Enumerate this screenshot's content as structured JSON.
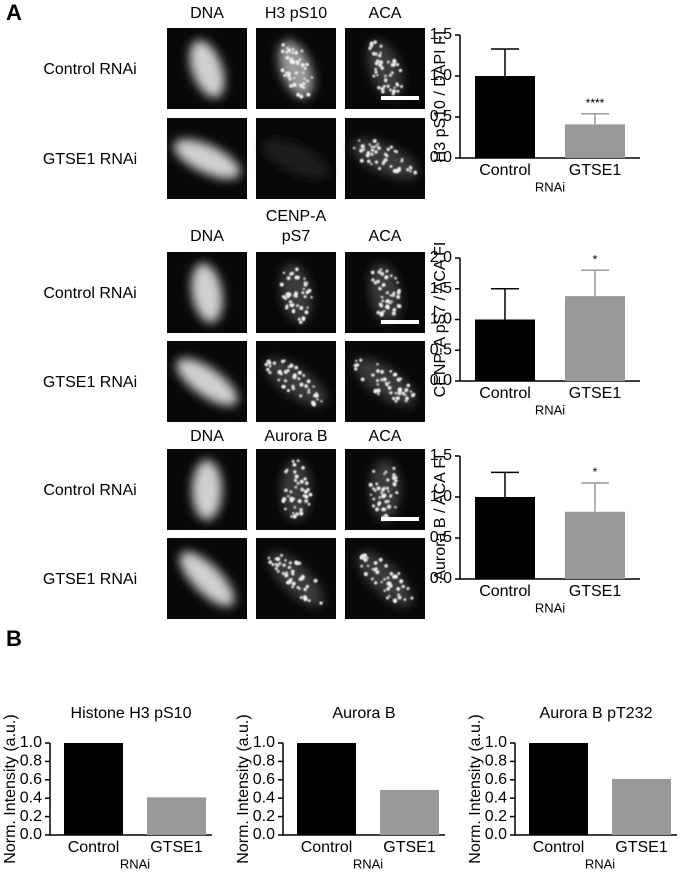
{
  "figure": {
    "panel_labels": [
      "A",
      "B"
    ],
    "image_sets": [
      {
        "columns": [
          "DNA",
          "H3 pS10",
          "ACA"
        ],
        "rows": [
          "Control RNAi",
          "GTSE1 RNAi"
        ]
      },
      {
        "columns": [
          "DNA",
          [
            "CENP-A",
            "pS7"
          ],
          "ACA"
        ],
        "rows": [
          "Control RNAi",
          "GTSE1 RNAi"
        ]
      },
      {
        "columns": [
          "DNA",
          "Aurora B",
          "ACA"
        ],
        "rows": [
          "Control RNAi",
          "GTSE1 RNAi"
        ]
      }
    ]
  },
  "chart_data": [
    {
      "type": "bar",
      "ylabel": "H3 pS10 / DAPI FI",
      "xlabel": "RNAi",
      "categories": [
        "Control",
        "GTSE1"
      ],
      "values": [
        1.0,
        0.41
      ],
      "errors": [
        0.33,
        0.13
      ],
      "significance": [
        null,
        "****"
      ],
      "colors": [
        "#000000",
        "#999999"
      ],
      "ylim": [
        0,
        1.5
      ],
      "yticks": [
        {
          "value": 0,
          "label": "0.0"
        },
        {
          "value": 0.5,
          "label": "0.5"
        },
        {
          "value": 1,
          "label": "1.0"
        },
        {
          "value": 1.5,
          "label": "1.5"
        }
      ]
    },
    {
      "type": "bar",
      "ylabel": "CENP-A pS7 / ACA FI",
      "xlabel": "RNAi",
      "categories": [
        "Control",
        "GTSE1"
      ],
      "values": [
        1.0,
        1.38
      ],
      "errors": [
        0.5,
        0.42
      ],
      "significance": [
        null,
        "*"
      ],
      "colors": [
        "#000000",
        "#999999"
      ],
      "ylim": [
        0,
        2
      ],
      "yticks": [
        {
          "value": 0,
          "label": "0.0"
        },
        {
          "value": 0.5,
          "label": "0.5"
        },
        {
          "value": 1,
          "label": "1.0"
        },
        {
          "value": 1.5,
          "label": "1.5"
        },
        {
          "value": 2,
          "label": "2.0"
        }
      ]
    },
    {
      "type": "bar",
      "ylabel": "Aurora B / ACA FI",
      "xlabel": "RNAi",
      "categories": [
        "Control",
        "GTSE1"
      ],
      "values": [
        1.0,
        0.82
      ],
      "errors": [
        0.3,
        0.35
      ],
      "significance": [
        null,
        "*"
      ],
      "colors": [
        "#000000",
        "#999999"
      ],
      "ylim": [
        0,
        1.5
      ],
      "yticks": [
        {
          "value": 0,
          "label": "0.0"
        },
        {
          "value": 0.5,
          "label": "0.5"
        },
        {
          "value": 1,
          "label": "1.0"
        },
        {
          "value": 1.5,
          "label": "1.5"
        }
      ]
    },
    {
      "type": "bar",
      "title": "Histone H3 pS10",
      "ylabel": "Norm. Intensity (a.u.)",
      "xlabel": "RNAi",
      "categories": [
        "Control",
        "GTSE1"
      ],
      "values": [
        1.0,
        0.41
      ],
      "colors": [
        "#000000",
        "#999999"
      ],
      "ylim": [
        0,
        1
      ],
      "yticks": [
        {
          "value": 0,
          "label": "0.0"
        },
        {
          "value": 0.2,
          "label": "0.2"
        },
        {
          "value": 0.4,
          "label": "0.4"
        },
        {
          "value": 0.6,
          "label": "0.6"
        },
        {
          "value": 0.8,
          "label": "0.8"
        },
        {
          "value": 1,
          "label": "1.0"
        }
      ]
    },
    {
      "type": "bar",
      "title": "Aurora B",
      "ylabel": "Norm. Intensity (a.u.)",
      "xlabel": "RNAi",
      "categories": [
        "Control",
        "GTSE1"
      ],
      "values": [
        1.0,
        0.49
      ],
      "colors": [
        "#000000",
        "#999999"
      ],
      "ylim": [
        0,
        1
      ],
      "yticks": [
        {
          "value": 0,
          "label": "0.0"
        },
        {
          "value": 0.2,
          "label": "0.2"
        },
        {
          "value": 0.4,
          "label": "0.4"
        },
        {
          "value": 0.6,
          "label": "0.6"
        },
        {
          "value": 0.8,
          "label": "0.8"
        },
        {
          "value": 1,
          "label": "1.0"
        }
      ]
    },
    {
      "type": "bar",
      "title": "Aurora B pT232",
      "ylabel": "Norm. Intensity (a.u.)",
      "xlabel": "RNAi",
      "categories": [
        "Control",
        "GTSE1"
      ],
      "values": [
        1.0,
        0.61
      ],
      "colors": [
        "#000000",
        "#999999"
      ],
      "ylim": [
        0,
        1
      ],
      "yticks": [
        {
          "value": 0,
          "label": "0.0"
        },
        {
          "value": 0.2,
          "label": "0.2"
        },
        {
          "value": 0.4,
          "label": "0.4"
        },
        {
          "value": 0.6,
          "label": "0.6"
        },
        {
          "value": 0.8,
          "label": "0.8"
        },
        {
          "value": 1,
          "label": "1.0"
        }
      ]
    }
  ]
}
